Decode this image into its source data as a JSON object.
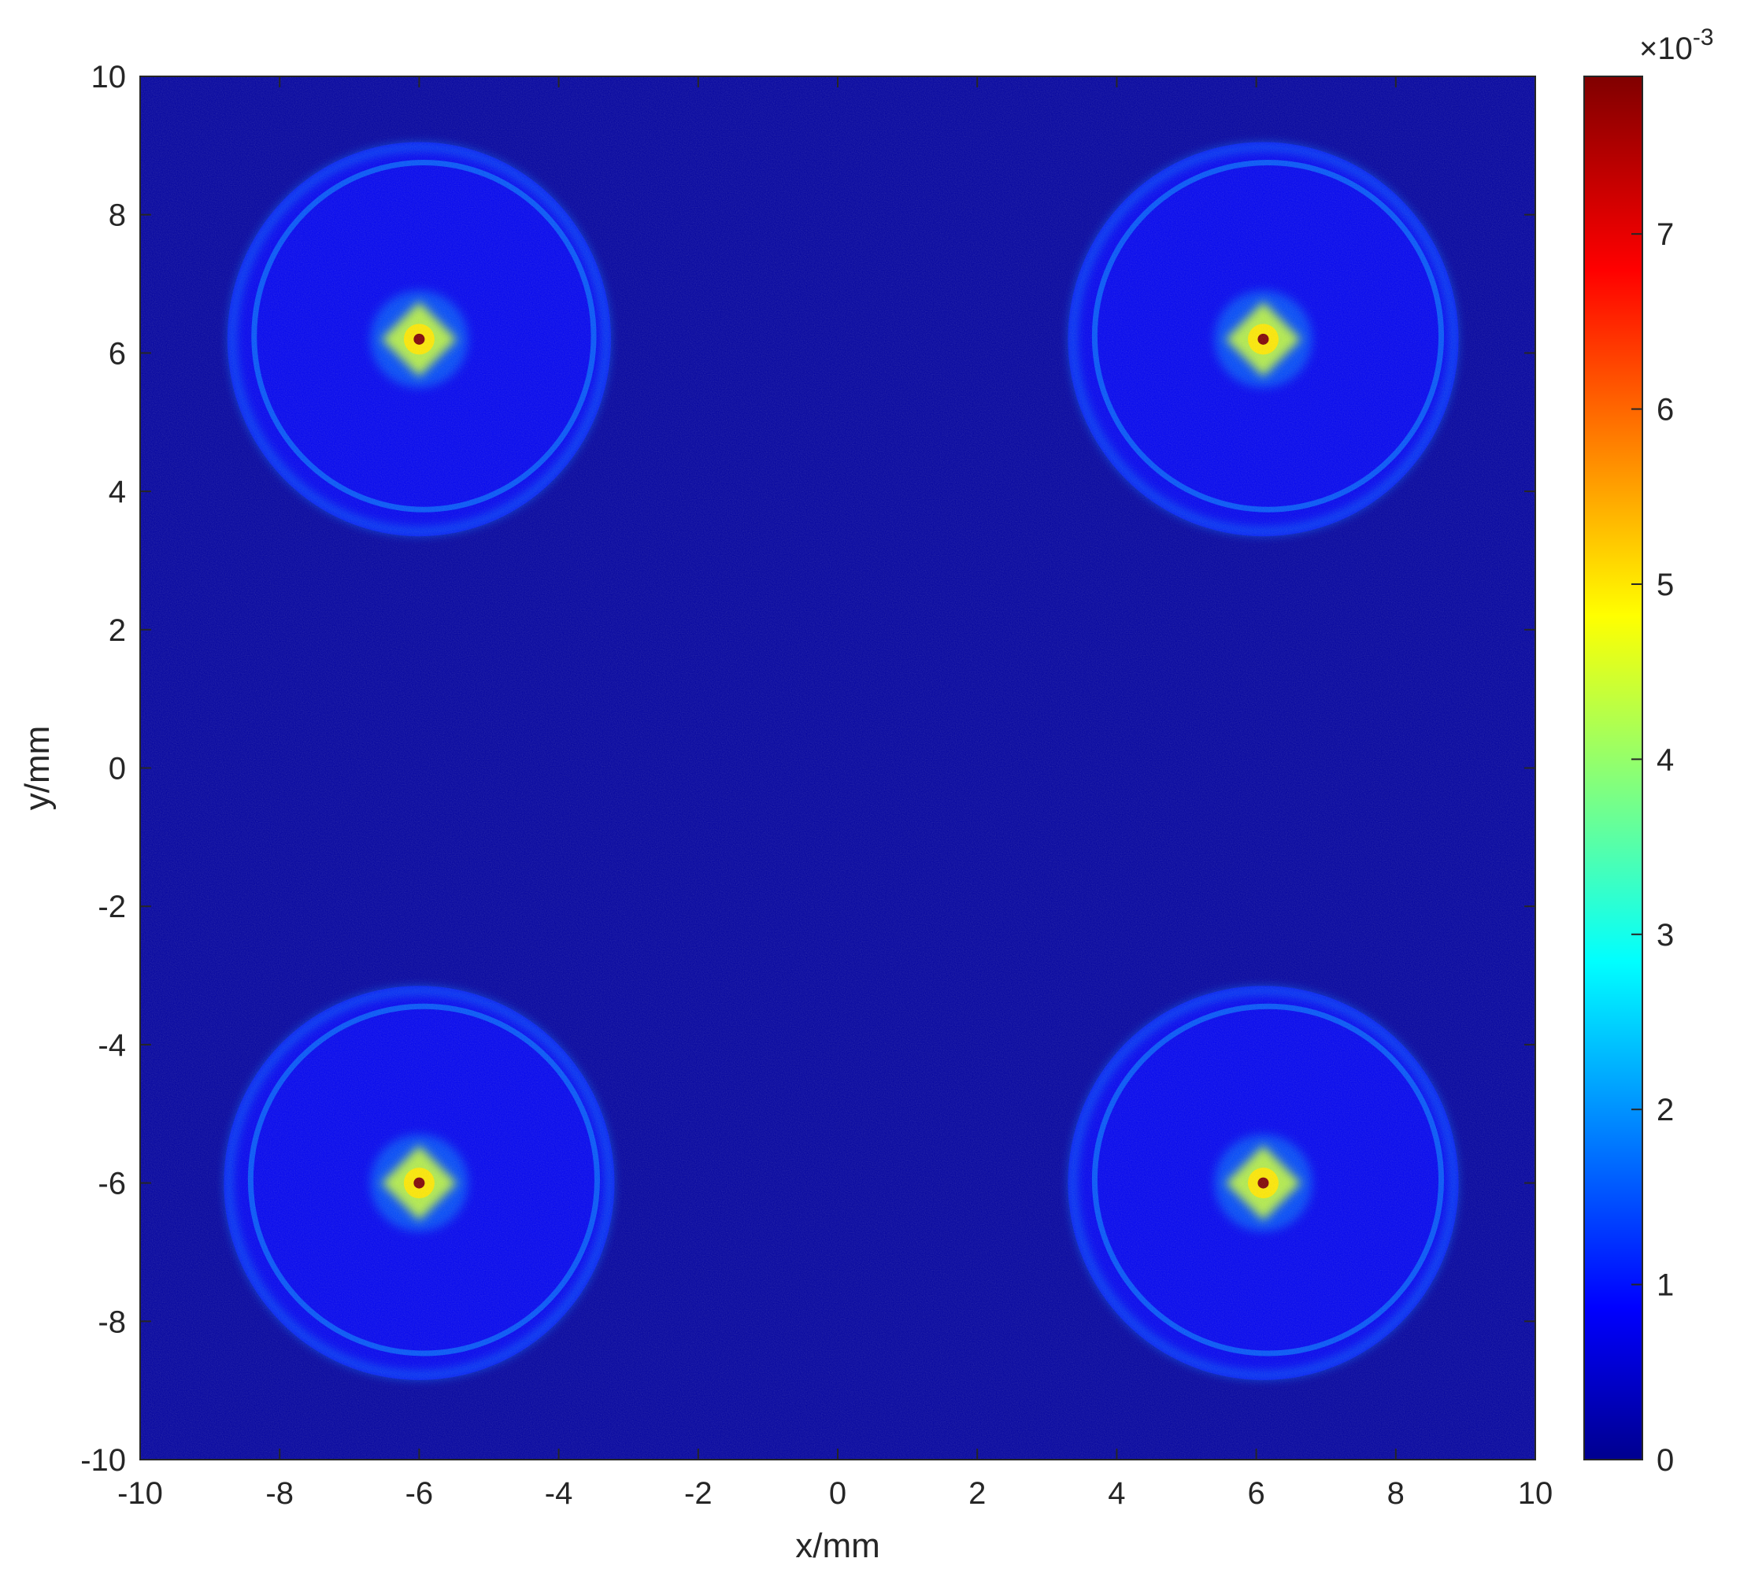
{
  "chart_data": {
    "type": "heatmap",
    "title": "",
    "xlabel": "x/mm",
    "ylabel": "y/mm",
    "xlim": [
      -10,
      10
    ],
    "ylim": [
      -10,
      10
    ],
    "x_ticks": [
      "-10",
      "-8",
      "-6",
      "-4",
      "-2",
      "0",
      "2",
      "4",
      "6",
      "8",
      "10"
    ],
    "y_ticks": [
      "-10",
      "-8",
      "-6",
      "-4",
      "-2",
      "0",
      "2",
      "4",
      "6",
      "8",
      "10"
    ],
    "x_tick_values": [
      -10,
      -8,
      -6,
      -4,
      -2,
      0,
      2,
      4,
      6,
      8,
      10
    ],
    "y_tick_values": [
      -10,
      -8,
      -6,
      -4,
      -2,
      0,
      2,
      4,
      6,
      8,
      10
    ],
    "colormap": "jet",
    "background_value": 0.0002,
    "colorbar": {
      "range": [
        0,
        7.9
      ],
      "ticks": [
        "0",
        "1",
        "2",
        "3",
        "4",
        "5",
        "6",
        "7"
      ],
      "tick_values": [
        0,
        1,
        2,
        3,
        4,
        5,
        6,
        7
      ],
      "multiplier": "×10",
      "exponent": "-3"
    },
    "spots": [
      {
        "cx": -6.0,
        "cy": 6.2,
        "rx": 2.75,
        "ry": 2.85,
        "ring_value": 1.8,
        "disk_value": 1.0,
        "core_value": 4.5,
        "peak_value": 7.9
      },
      {
        "cx": 6.1,
        "cy": 6.2,
        "rx": 2.8,
        "ry": 2.85,
        "ring_value": 1.8,
        "disk_value": 1.0,
        "core_value": 4.5,
        "peak_value": 7.9
      },
      {
        "cx": -6.0,
        "cy": -6.0,
        "rx": 2.8,
        "ry": 2.85,
        "ring_value": 1.8,
        "disk_value": 1.0,
        "core_value": 4.5,
        "peak_value": 7.9
      },
      {
        "cx": 6.1,
        "cy": -6.0,
        "rx": 2.8,
        "ry": 2.85,
        "ring_value": 1.8,
        "disk_value": 1.0,
        "core_value": 4.5,
        "peak_value": 7.9
      }
    ]
  }
}
